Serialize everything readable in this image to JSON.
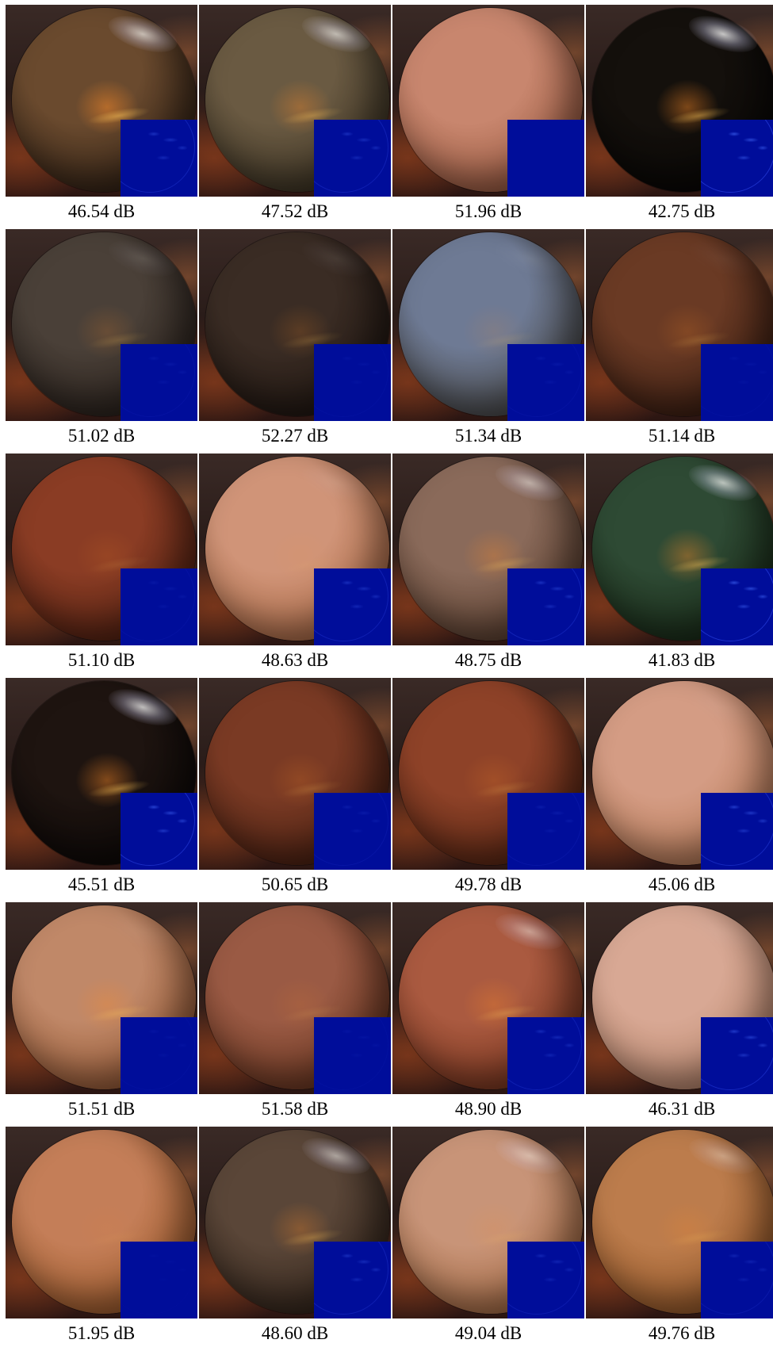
{
  "figure": {
    "rows": 6,
    "columns": 4,
    "cells": [
      {
        "psnr": "46.54 dB",
        "base": "#6a4a2e",
        "shade": "#1c120c",
        "spec": 0.8,
        "glow": 0.9,
        "err": 0.5
      },
      {
        "psnr": "47.52 dB",
        "base": "#6a5a42",
        "shade": "#2a2418",
        "spec": 0.75,
        "glow": 0.6,
        "err": 0.45
      },
      {
        "psnr": "51.96 dB",
        "base": "#c8866e",
        "shade": "#8a4a30",
        "spec": 0.0,
        "glow": 0.0,
        "err": 0.0
      },
      {
        "psnr": "42.75 dB",
        "base": "#14100c",
        "shade": "#040303",
        "spec": 0.95,
        "glow": 0.8,
        "err": 0.85
      },
      {
        "psnr": "51.02 dB",
        "base": "#4a4038",
        "shade": "#1e1612",
        "spec": 0.15,
        "glow": 0.3,
        "err": 0.15
      },
      {
        "psnr": "52.27 dB",
        "base": "#3a2c24",
        "shade": "#160e0a",
        "spec": 0.1,
        "glow": 0.3,
        "err": 0.1
      },
      {
        "psnr": "51.34 dB",
        "base": "#6e7a94",
        "shade": "#3a3428",
        "spec": 0.1,
        "glow": 0.2,
        "err": 0.15
      },
      {
        "psnr": "51.14 dB",
        "base": "#6a3a24",
        "shade": "#2a140c",
        "spec": 0.05,
        "glow": 0.3,
        "err": 0.1
      },
      {
        "psnr": "51.10 dB",
        "base": "#8a3c24",
        "shade": "#40180c",
        "spec": 0.0,
        "glow": 0.2,
        "err": 0.15
      },
      {
        "psnr": "48.63 dB",
        "base": "#d09478",
        "shade": "#a05c34",
        "spec": 0.1,
        "glow": 0.1,
        "err": 0.45
      },
      {
        "psnr": "48.75 dB",
        "base": "#8a6a5a",
        "shade": "#4a3020",
        "spec": 0.6,
        "glow": 0.5,
        "err": 0.5
      },
      {
        "psnr": "41.83 dB",
        "base": "#2e4a34",
        "shade": "#12200e",
        "spec": 0.85,
        "glow": 0.7,
        "err": 0.85
      },
      {
        "psnr": "45.51 dB",
        "base": "#1e1410",
        "shade": "#060404",
        "spec": 0.9,
        "glow": 0.8,
        "err": 0.75
      },
      {
        "psnr": "50.65 dB",
        "base": "#7a3a24",
        "shade": "#3a180c",
        "spec": 0.0,
        "glow": 0.3,
        "err": 0.2
      },
      {
        "psnr": "49.78 dB",
        "base": "#8e4228",
        "shade": "#461c0c",
        "spec": 0.0,
        "glow": 0.3,
        "err": 0.2
      },
      {
        "psnr": "45.06 dB",
        "base": "#d49c84",
        "shade": "#b07048",
        "spec": 0.05,
        "glow": 0.0,
        "err": 0.65
      },
      {
        "psnr": "51.51 dB",
        "base": "#c08868",
        "shade": "#8a4a24",
        "spec": 0.05,
        "glow": 0.5,
        "err": 0.1
      },
      {
        "psnr": "51.58 dB",
        "base": "#9a5a44",
        "shade": "#5a2a14",
        "spec": 0.0,
        "glow": 0.2,
        "err": 0.1
      },
      {
        "psnr": "48.90 dB",
        "base": "#aa5a40",
        "shade": "#6a2a14",
        "spec": 0.55,
        "glow": 0.5,
        "err": 0.4
      },
      {
        "psnr": "46.31 dB",
        "base": "#d8a894",
        "shade": "#b07c60",
        "spec": 0.05,
        "glow": 0.0,
        "err": 0.65
      },
      {
        "psnr": "51.95 dB",
        "base": "#c47e58",
        "shade": "#94501c",
        "spec": 0.0,
        "glow": 0.1,
        "err": 0.05
      },
      {
        "psnr": "48.60 dB",
        "base": "#5a4638",
        "shade": "#241810",
        "spec": 0.65,
        "glow": 0.5,
        "err": 0.45
      },
      {
        "psnr": "49.04 dB",
        "base": "#c89478",
        "shade": "#9a5c30",
        "spec": 0.5,
        "glow": 0.2,
        "err": 0.35
      },
      {
        "psnr": "49.76 dB",
        "base": "#bc7c4c",
        "shade": "#8a4c1c",
        "spec": 0.4,
        "glow": 0.3,
        "err": 0.3
      }
    ]
  }
}
